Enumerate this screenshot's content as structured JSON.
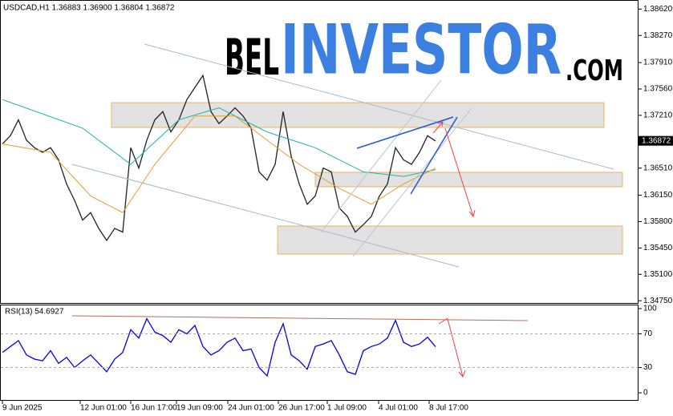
{
  "chart_data": [
    {
      "type": "line",
      "title": "USDCAD,H1 1.36883 1.36900 1.36804 1.36872",
      "watermark": [
        "BEL",
        "INVESTOR",
        ".COM"
      ],
      "last_price": {
        "value": 1.36872,
        "label": "1.36872"
      },
      "xlim": [
        0,
        79.2
      ],
      "xticks": [
        {
          "value": 0,
          "label": "9 Jun 2025"
        },
        {
          "value": 9.7,
          "label": "12 Jun 01:00"
        },
        {
          "value": 16,
          "label": "16 Jun 17:00"
        },
        {
          "value": 21.7,
          "label": "19 Jun 09:00"
        },
        {
          "value": 28.1,
          "label": "24 Jun 01:00"
        },
        {
          "value": 34.4,
          "label": "26 Jun 17:00"
        },
        {
          "value": 40.5,
          "label": "1 Jul 09:00"
        },
        {
          "value": 46.9,
          "label": "4 Jul 01:00"
        },
        {
          "value": 53.2,
          "label": "8 Jul 17:00"
        }
      ],
      "ylim": [
        1.3472,
        1.3873
      ],
      "yticks": [
        {
          "value": 1.3862,
          "label": "1.38620"
        },
        {
          "value": 1.3827,
          "label": "1.38270"
        },
        {
          "value": 1.3791,
          "label": "1.37910"
        },
        {
          "value": 1.3756,
          "label": "1.37560"
        },
        {
          "value": 1.3721,
          "label": "1.37210"
        },
        {
          "value": 1.3651,
          "label": "1.36510"
        },
        {
          "value": 1.3615,
          "label": "1.36150"
        },
        {
          "value": 1.358,
          "label": "1.35800"
        },
        {
          "value": 1.3545,
          "label": "1.35450"
        },
        {
          "value": 1.351,
          "label": "1.35100"
        },
        {
          "value": 1.3475,
          "label": "1.34750"
        }
      ],
      "series": [
        {
          "color": "#222222",
          "values": [
            1.3683,
            1.3694,
            1.3715,
            1.3688,
            1.3678,
            1.3672,
            1.3678,
            1.3662,
            1.363,
            1.3608,
            1.3582,
            1.3592,
            1.3571,
            1.3555,
            1.3571,
            1.3566,
            1.3678,
            1.3651,
            1.3688,
            1.3715,
            1.3726,
            1.3699,
            1.3715,
            1.3742,
            1.3758,
            1.3774,
            1.3726,
            1.371,
            1.372,
            1.3731,
            1.372,
            1.3704,
            1.3646,
            1.3635,
            1.3656,
            1.3726,
            1.3667,
            1.363,
            1.3603,
            1.3614,
            1.3651,
            1.3646,
            1.3598,
            1.3587,
            1.3566,
            1.3576,
            1.3587,
            1.3614,
            1.363,
            1.3678,
            1.3662,
            1.3656,
            1.3672,
            1.3694,
            1.3687
          ]
        },
        {
          "color": "#20b2aa",
          "x": [
            0,
            10,
            16,
            22,
            27,
            33,
            39,
            45,
            50,
            54
          ],
          "values": [
            1.3742,
            1.3704,
            1.3656,
            1.3715,
            1.3731,
            1.3699,
            1.3678,
            1.3646,
            1.364,
            1.3649
          ]
        },
        {
          "color": "#e0a030",
          "x": [
            0,
            6,
            11,
            15,
            19,
            24,
            29,
            33,
            37,
            42,
            46,
            50,
            54
          ],
          "values": [
            1.3683,
            1.3672,
            1.3614,
            1.3592,
            1.3656,
            1.372,
            1.372,
            1.3688,
            1.3656,
            1.3624,
            1.3603,
            1.363,
            1.3651
          ]
        }
      ]
    },
    {
      "type": "line",
      "title": "RSI(13) 54.6927",
      "xlim": [
        0,
        79.2
      ],
      "ylim": [
        -8.5,
        103.8
      ],
      "yticks": [
        0,
        30,
        70,
        100
      ],
      "levels": [
        30,
        70
      ],
      "series": [
        {
          "color": "#0000ee",
          "values": [
            48,
            55,
            62,
            45,
            40,
            38,
            50,
            35,
            42,
            30,
            38,
            45,
            35,
            25,
            40,
            48,
            75,
            65,
            88,
            72,
            68,
            60,
            75,
            70,
            80,
            55,
            45,
            50,
            60,
            65,
            50,
            52,
            30,
            20,
            60,
            82,
            45,
            38,
            28,
            55,
            58,
            62,
            45,
            25,
            22,
            50,
            55,
            58,
            65,
            86,
            60,
            55,
            58,
            66,
            54.7
          ]
        }
      ]
    }
  ]
}
